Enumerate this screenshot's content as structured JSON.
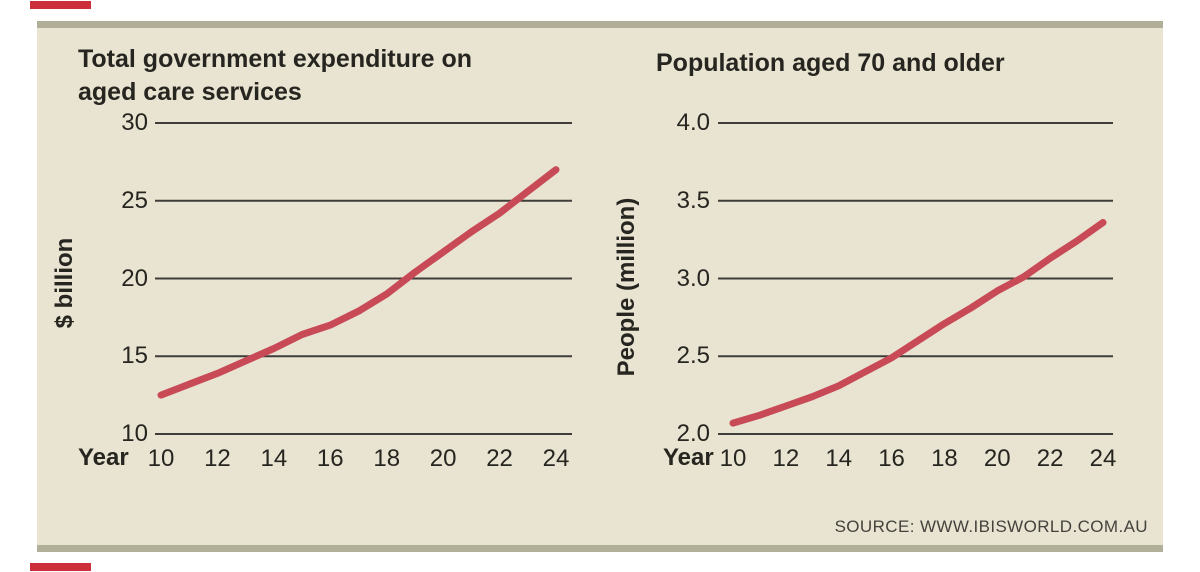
{
  "theme": {
    "panel_bg": "#e9e4d2",
    "edge_strip": "#b2af98",
    "grid_color": "#3e3d38",
    "line_color": "#c84a57",
    "text_color": "#26251f",
    "source_text_color": "#44423c",
    "crop_mark_color": "#cd2f3a"
  },
  "source": {
    "label": "SOURCE: WWW.IBISWORLD.COM.AU"
  },
  "chart_data": [
    {
      "type": "line",
      "title_lines": [
        "Total government expenditure on",
        "aged care services"
      ],
      "title": "Total government expenditure on aged care services",
      "ylabel": "$ billion",
      "xlabel": "Year",
      "x": [
        10,
        11,
        12,
        13,
        14,
        15,
        16,
        17,
        18,
        19,
        20,
        21,
        22,
        23,
        24
      ],
      "values": [
        12.5,
        13.2,
        13.9,
        14.7,
        15.5,
        16.4,
        17.0,
        17.9,
        19.0,
        20.4,
        21.7,
        23.0,
        24.2,
        25.6,
        27.0
      ],
      "ylim": [
        10,
        30
      ],
      "ytick_values": [
        10,
        15,
        20,
        25,
        30
      ],
      "ytick_labels": [
        "10",
        "15",
        "20",
        "25",
        "30"
      ],
      "xticks": [
        10,
        12,
        14,
        16,
        18,
        20,
        22,
        24
      ],
      "xtick_labels": [
        "10",
        "12",
        "14",
        "16",
        "18",
        "20",
        "22",
        "24"
      ],
      "grid": "on",
      "legend": "none"
    },
    {
      "type": "line",
      "title_lines": [
        "Population aged 70 and older"
      ],
      "title": "Population aged 70 and older",
      "ylabel": "People (million)",
      "xlabel": "Year",
      "x": [
        10,
        11,
        12,
        13,
        14,
        15,
        16,
        17,
        18,
        19,
        20,
        21,
        22,
        23,
        24
      ],
      "values": [
        2.07,
        2.12,
        2.18,
        2.24,
        2.31,
        2.4,
        2.49,
        2.6,
        2.71,
        2.81,
        2.92,
        3.01,
        3.13,
        3.24,
        3.36
      ],
      "ylim": [
        2.0,
        4.0
      ],
      "ytick_values": [
        2.0,
        2.5,
        3.0,
        3.5,
        4.0
      ],
      "ytick_labels": [
        "2.0",
        "2.5",
        "3.0",
        "3.5",
        "4.0"
      ],
      "xticks": [
        10,
        12,
        14,
        16,
        18,
        20,
        22,
        24
      ],
      "xtick_labels": [
        "10",
        "12",
        "14",
        "16",
        "18",
        "20",
        "22",
        "24"
      ],
      "grid": "on",
      "legend": "none"
    }
  ]
}
